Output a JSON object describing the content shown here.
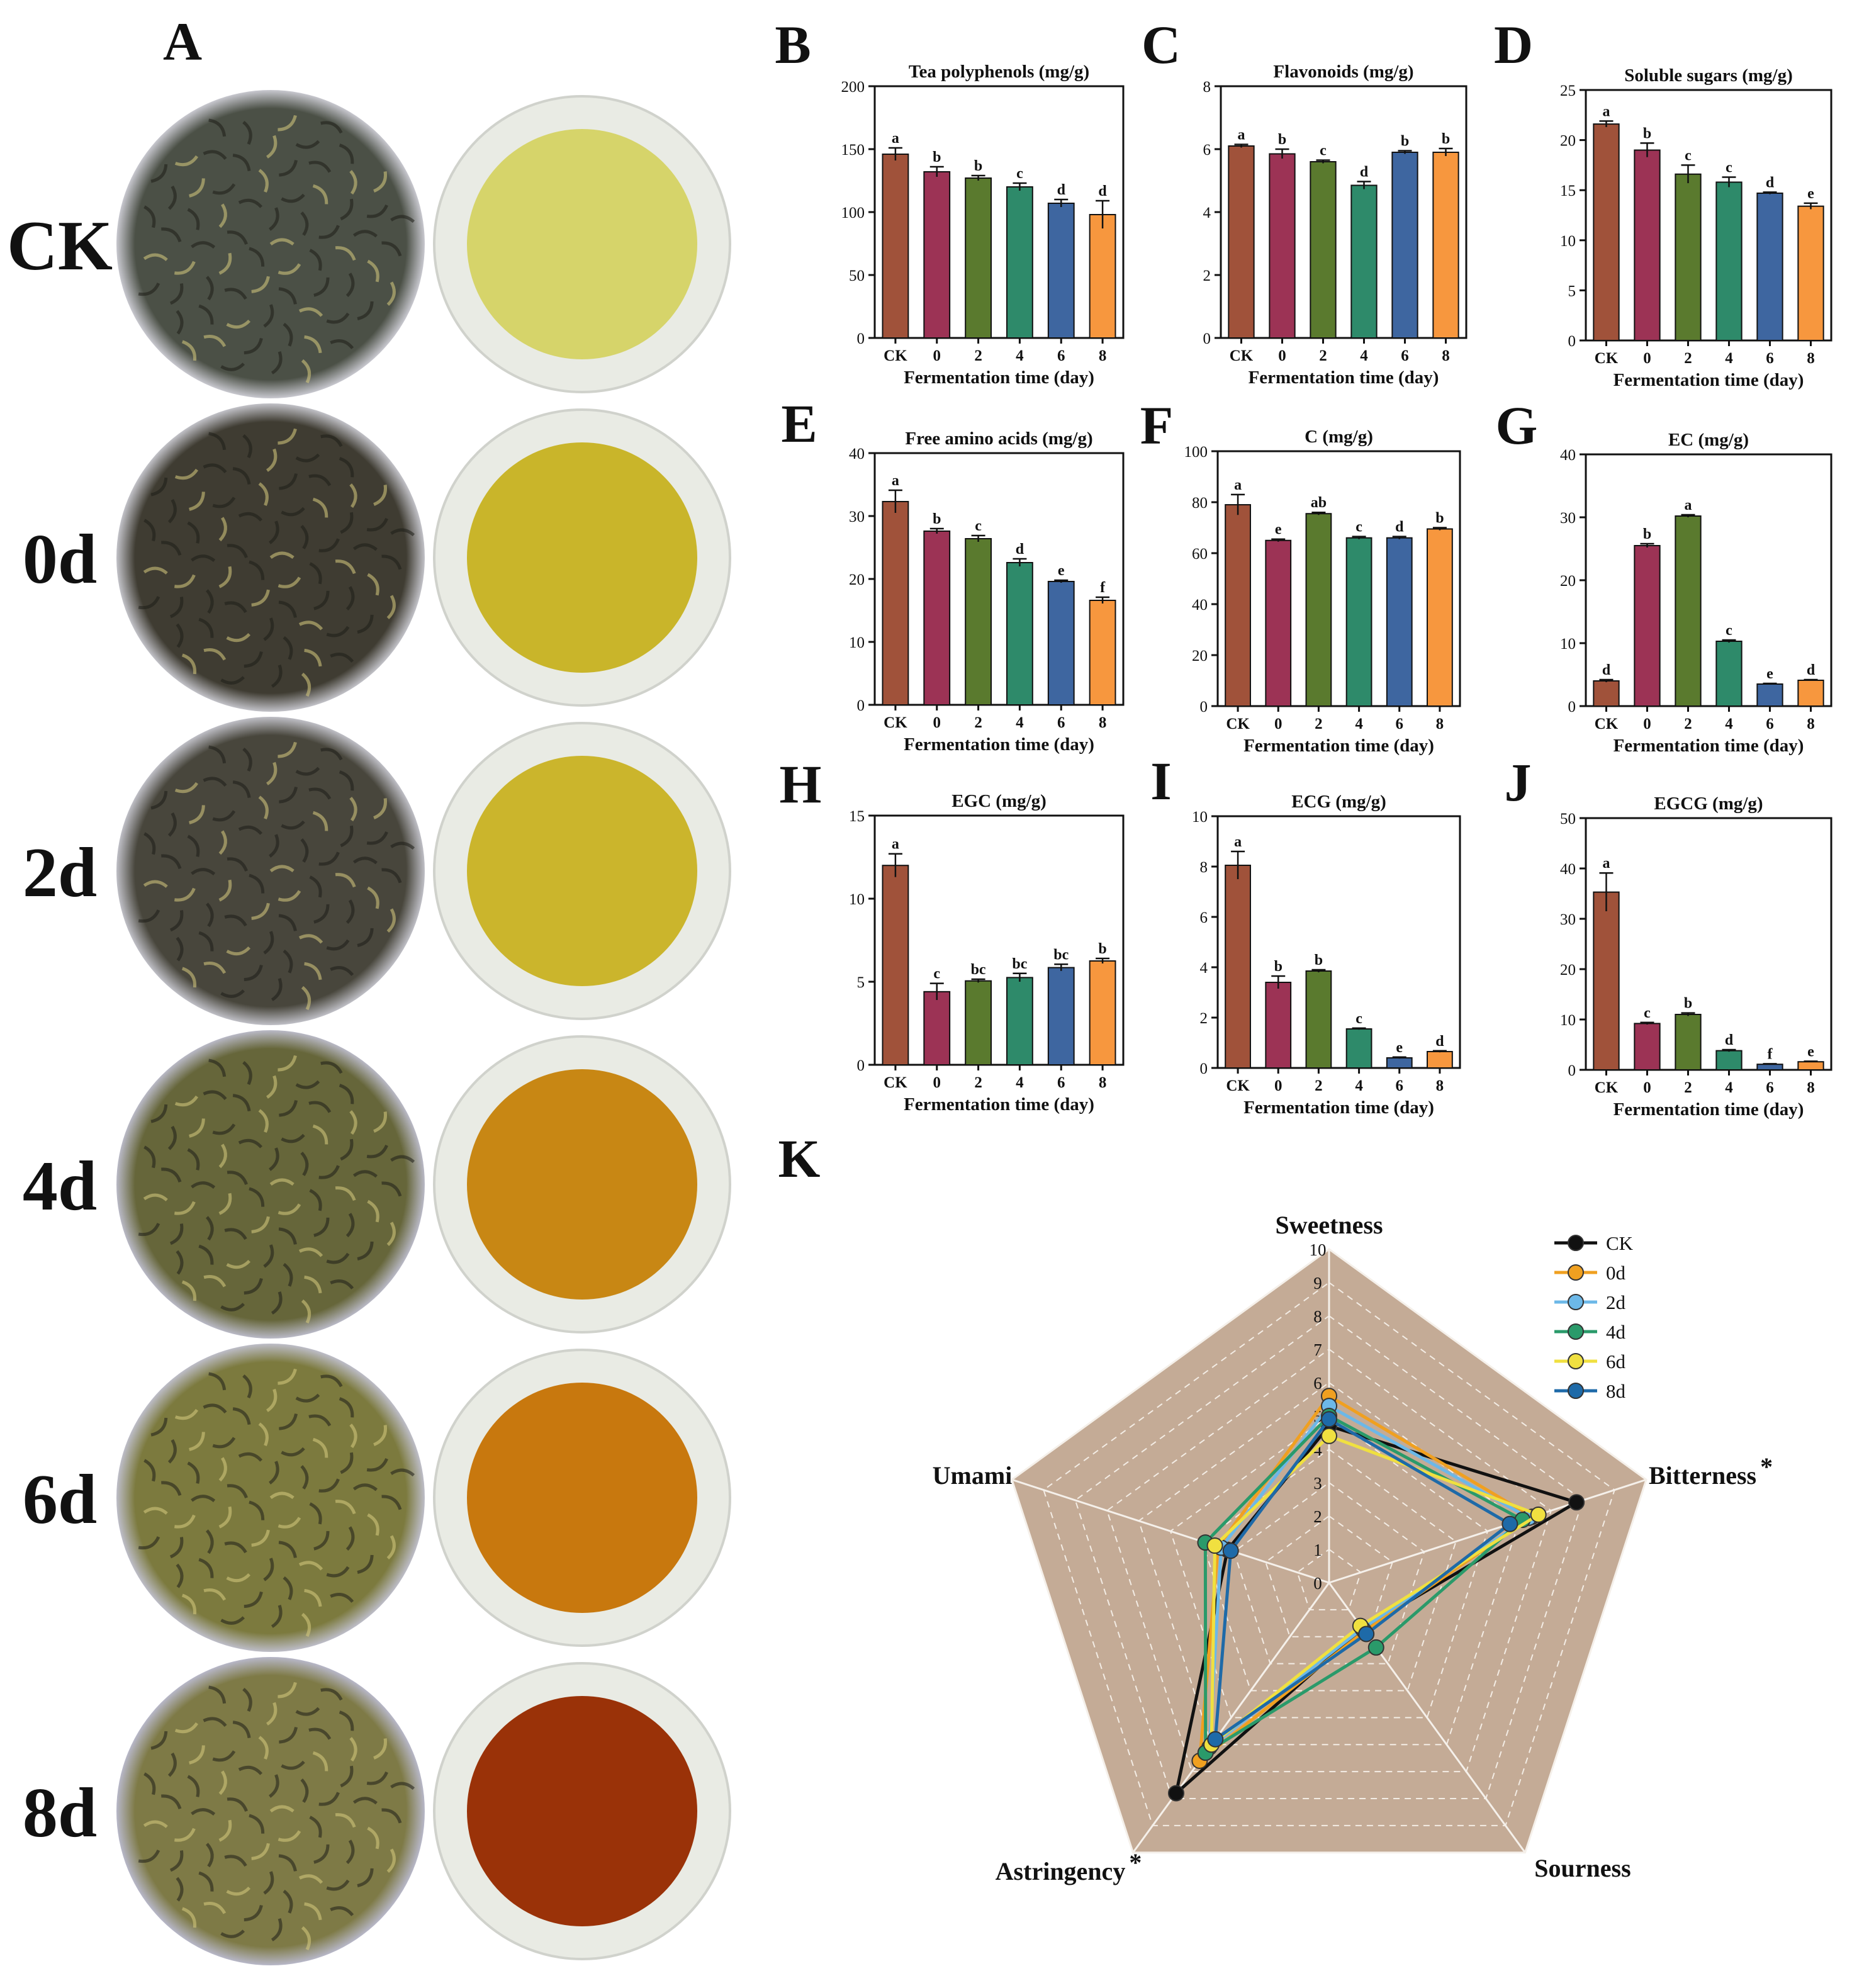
{
  "figure": {
    "panel_a": {
      "letter": "A",
      "row_labels": [
        "CK",
        "0d",
        "2d",
        "4d",
        "6d",
        "8d"
      ],
      "leaf_colors": [
        "#4b5046",
        "#3f3c32",
        "#48463c",
        "#66663a",
        "#7c7a3e",
        "#7e7a46"
      ],
      "leaf_bg_colors": [
        "#c8c8cf",
        "#c2c2c8",
        "#bfbfc6",
        "#b9b9c6",
        "#bdbdc8",
        "#b7b7c8"
      ],
      "infusion_colors": [
        "#d6d46a",
        "#c9b52a",
        "#cbb52c",
        "#c88714",
        "#c8780e",
        "#9a3208"
      ]
    },
    "bar_colors": [
      "#a0523a",
      "#9c3355",
      "#5a7a2e",
      "#2e8a6a",
      "#3e66a0",
      "#f7973e"
    ]
  },
  "chart_data": [
    {
      "panel": "B",
      "type": "bar",
      "title": "Tea polyphenols (mg/g)",
      "xlabel": "Fermentation time (day)",
      "categories": [
        "CK",
        "0",
        "2",
        "4",
        "6",
        "8"
      ],
      "values": [
        146,
        132,
        127,
        120,
        107,
        98
      ],
      "errors": [
        5,
        4,
        2,
        3,
        3,
        11
      ],
      "letters": [
        "a",
        "b",
        "b",
        "c",
        "d",
        "d"
      ],
      "ylim": [
        0,
        200
      ],
      "yticks": [
        0,
        50,
        100,
        150,
        200
      ]
    },
    {
      "panel": "C",
      "type": "bar",
      "title": "Flavonoids (mg/g)",
      "xlabel": "Fermentation time (day)",
      "categories": [
        "CK",
        "0",
        "2",
        "4",
        "6",
        "8"
      ],
      "values": [
        6.1,
        5.85,
        5.6,
        4.85,
        5.9,
        5.9
      ],
      "errors": [
        0.05,
        0.15,
        0.05,
        0.12,
        0.05,
        0.12
      ],
      "letters": [
        "a",
        "b",
        "c",
        "d",
        "b",
        "b"
      ],
      "ylim": [
        0,
        8
      ],
      "yticks": [
        0,
        2,
        4,
        6,
        8
      ]
    },
    {
      "panel": "D",
      "type": "bar",
      "title": "Soluble sugars (mg/g)",
      "xlabel": "Fermentation time (day)",
      "categories": [
        "CK",
        "0",
        "2",
        "4",
        "6",
        "8"
      ],
      "values": [
        21.6,
        19,
        16.6,
        15.8,
        14.7,
        13.4
      ],
      "errors": [
        0.3,
        0.7,
        0.9,
        0.5,
        0.1,
        0.3
      ],
      "letters": [
        "a",
        "b",
        "c",
        "c",
        "d",
        "e"
      ],
      "ylim": [
        0,
        25
      ],
      "yticks": [
        0,
        5,
        10,
        15,
        20,
        25
      ]
    },
    {
      "panel": "E",
      "type": "bar",
      "title": "Free amino acids (mg/g)",
      "xlabel": "Fermentation time (day)",
      "categories": [
        "CK",
        "0",
        "2",
        "4",
        "6",
        "8"
      ],
      "values": [
        32.3,
        27.6,
        26.4,
        22.6,
        19.6,
        16.6
      ],
      "errors": [
        1.8,
        0.4,
        0.5,
        0.6,
        0.2,
        0.5
      ],
      "letters": [
        "a",
        "b",
        "c",
        "d",
        "e",
        "f"
      ],
      "ylim": [
        0,
        40
      ],
      "yticks": [
        0,
        10,
        20,
        30,
        40
      ]
    },
    {
      "panel": "F",
      "type": "bar",
      "title": "C (mg/g)",
      "xlabel": "Fermentation time (day)",
      "categories": [
        "CK",
        "0",
        "2",
        "4",
        "6",
        "8"
      ],
      "values": [
        79,
        65,
        75.5,
        66,
        66,
        69.5
      ],
      "errors": [
        4,
        0.5,
        0.5,
        0.5,
        0.5,
        0.5
      ],
      "letters": [
        "a",
        "e",
        "ab",
        "c",
        "d",
        "b"
      ],
      "ylim": [
        0,
        100
      ],
      "yticks": [
        0,
        20,
        40,
        60,
        80,
        100
      ]
    },
    {
      "panel": "G",
      "type": "bar",
      "title": "EC (mg/g)",
      "xlabel": "Fermentation time (day)",
      "categories": [
        "CK",
        "0",
        "2",
        "4",
        "6",
        "8"
      ],
      "values": [
        4,
        25.5,
        30.2,
        10.3,
        3.5,
        4.1
      ],
      "errors": [
        0.2,
        0.3,
        0.2,
        0.2,
        0.1,
        0.1
      ],
      "letters": [
        "d",
        "b",
        "a",
        "c",
        "e",
        "d"
      ],
      "ylim": [
        0,
        40
      ],
      "yticks": [
        0,
        10,
        20,
        30,
        40
      ]
    },
    {
      "panel": "H",
      "type": "bar",
      "title": "EGC (mg/g)",
      "xlabel": "Fermentation time (day)",
      "categories": [
        "CK",
        "0",
        "2",
        "4",
        "6",
        "8"
      ],
      "values": [
        12,
        4.4,
        5.05,
        5.25,
        5.85,
        6.25
      ],
      "errors": [
        0.7,
        0.5,
        0.1,
        0.25,
        0.2,
        0.15
      ],
      "letters": [
        "a",
        "c",
        "bc",
        "bc",
        "bc",
        "b"
      ],
      "ylim": [
        0,
        15
      ],
      "yticks": [
        0,
        5,
        10,
        15
      ]
    },
    {
      "panel": "I",
      "type": "bar",
      "title": "ECG (mg/g)",
      "xlabel": "Fermentation time (day)",
      "categories": [
        "CK",
        "0",
        "2",
        "4",
        "6",
        "8"
      ],
      "values": [
        8.05,
        3.4,
        3.85,
        1.55,
        0.4,
        0.65
      ],
      "errors": [
        0.55,
        0.25,
        0.05,
        0.03,
        0.03,
        0.03
      ],
      "letters": [
        "a",
        "b",
        "b",
        "c",
        "e",
        "d"
      ],
      "ylim": [
        0,
        10
      ],
      "yticks": [
        0,
        2,
        4,
        6,
        8,
        10
      ]
    },
    {
      "panel": "J",
      "type": "bar",
      "title": "EGCG (mg/g)",
      "xlabel": "Fermentation time (day)",
      "categories": [
        "CK",
        "0",
        "2",
        "4",
        "6",
        "8"
      ],
      "values": [
        35.3,
        9.2,
        11,
        3.8,
        1.1,
        1.6
      ],
      "errors": [
        3.8,
        0.2,
        0.3,
        0.2,
        0.1,
        0.1
      ],
      "letters": [
        "a",
        "c",
        "b",
        "d",
        "f",
        "e"
      ],
      "ylim": [
        0,
        50
      ],
      "yticks": [
        0,
        10,
        20,
        30,
        40,
        50
      ]
    },
    {
      "panel": "K",
      "type": "radar",
      "axes": [
        "Sweetness",
        "Bitterness",
        "Sourness",
        "Astringency",
        "Umami"
      ],
      "axis_marks": [
        "",
        "*",
        "",
        "*",
        ""
      ],
      "range": [
        0,
        10
      ],
      "ticks": [
        0,
        1,
        2,
        3,
        4,
        5,
        6,
        7,
        8,
        9,
        10
      ],
      "series": [
        {
          "name": "CK",
          "color": "#111111",
          "values": [
            4.7,
            7.8,
            1.7,
            7.8,
            3.2
          ]
        },
        {
          "name": "0d",
          "color": "#f0a020",
          "values": [
            5.6,
            6.4,
            1.8,
            6.6,
            3.5
          ]
        },
        {
          "name": "2d",
          "color": "#6cb8e8",
          "values": [
            5.3,
            6.3,
            1.7,
            6.1,
            3.4
          ]
        },
        {
          "name": "4d",
          "color": "#2a9a6a",
          "values": [
            5.0,
            6.1,
            2.4,
            6.3,
            3.9
          ]
        },
        {
          "name": "6d",
          "color": "#f0e040",
          "values": [
            4.4,
            6.6,
            1.6,
            6.0,
            3.6
          ]
        },
        {
          "name": "8d",
          "color": "#1e6aa8",
          "values": [
            4.9,
            5.7,
            1.9,
            5.8,
            3.1
          ]
        }
      ],
      "background": "#c4ab96"
    }
  ]
}
